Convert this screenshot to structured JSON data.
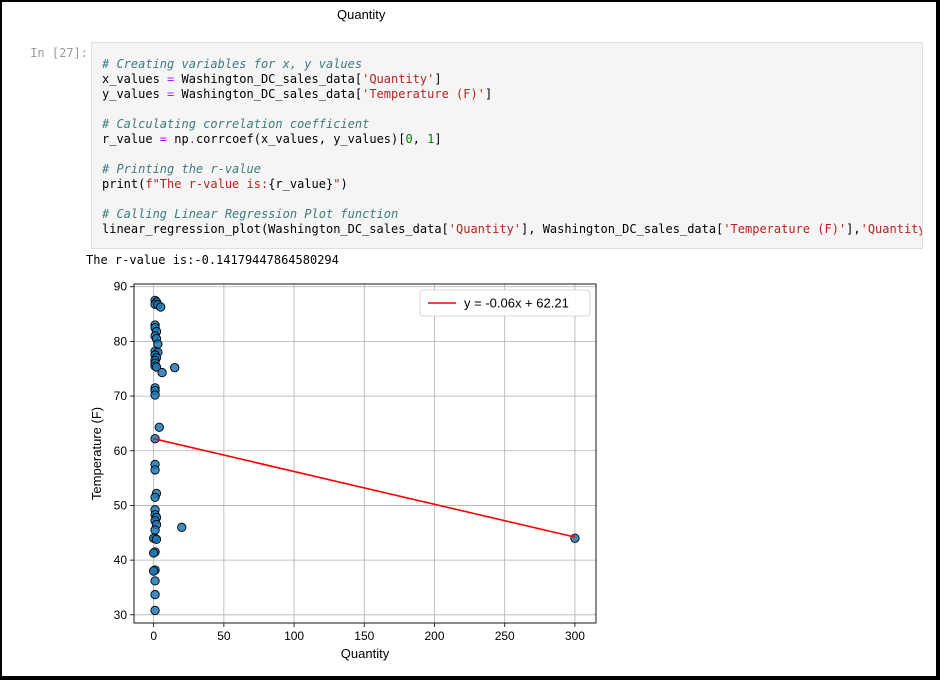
{
  "previous_output": {
    "xlabel": "Quantity"
  },
  "cell": {
    "prompt": "In [27]:",
    "code": [
      [
        [
          "# Creating variables for x, y values",
          "cm"
        ]
      ],
      [
        [
          "x_values ",
          ""
        ],
        [
          "=",
          "op"
        ],
        [
          " Washington_DC_sales_data[",
          ""
        ],
        [
          "'Quantity'",
          "st"
        ],
        [
          "]",
          ""
        ]
      ],
      [
        [
          "y_values ",
          ""
        ],
        [
          "=",
          "op"
        ],
        [
          " Washington_DC_sales_data[",
          ""
        ],
        [
          "'Temperature (F)'",
          "st"
        ],
        [
          "]",
          ""
        ]
      ],
      [],
      [
        [
          "# Calculating correlation coefficient",
          "cm"
        ]
      ],
      [
        [
          "r_value ",
          ""
        ],
        [
          "=",
          "op"
        ],
        [
          " np",
          ""
        ],
        [
          ".",
          "op"
        ],
        [
          "corrcoef(x_values, y_values)[",
          ""
        ],
        [
          "0",
          "nm"
        ],
        [
          ", ",
          ""
        ],
        [
          "1",
          "nm"
        ],
        [
          "]",
          ""
        ]
      ],
      [],
      [
        [
          "# Printing the r-value",
          "cm"
        ]
      ],
      [
        [
          "print(",
          ""
        ],
        [
          "f\"The r-value is:",
          "st"
        ],
        [
          "{r_value}",
          ""
        ],
        [
          "\"",
          "st"
        ],
        [
          ")",
          ""
        ]
      ],
      [],
      [
        [
          "# Calling Linear Regression Plot function",
          "cm"
        ]
      ],
      [
        [
          "linear_regression_plot(Washington_DC_sales_data[",
          ""
        ],
        [
          "'Quantity'",
          "st"
        ],
        [
          "], Washington_DC_sales_data[",
          ""
        ],
        [
          "'Temperature (F)'",
          "st"
        ],
        [
          "],",
          ""
        ],
        [
          "'Quantity'",
          "st"
        ]
      ]
    ]
  },
  "output_text": "The r-value is:-0.14179447864580294",
  "colors": {
    "point_fill": "#1f77b4",
    "point_edge": "#000000",
    "line": "#ff0000",
    "grid": "#b0b0b0"
  },
  "chart_data": {
    "type": "scatter",
    "xlabel": "Quantity",
    "ylabel": "Temperature (F)",
    "xlim": [
      -14,
      315
    ],
    "ylim": [
      28.5,
      90.5
    ],
    "x_ticks": [
      0,
      50,
      100,
      150,
      200,
      250,
      300
    ],
    "y_ticks": [
      30,
      40,
      50,
      60,
      70,
      80,
      90
    ],
    "grid": true,
    "legend": {
      "label": "y = -0.06x + 62.21",
      "placement": "top-right"
    },
    "regression": {
      "slope": -0.06,
      "intercept": 62.21,
      "x_range": [
        0,
        300
      ]
    },
    "points": [
      [
        1,
        87.5
      ],
      [
        2,
        87.2
      ],
      [
        1,
        86.8
      ],
      [
        3,
        86.7
      ],
      [
        5,
        86.3
      ],
      [
        1,
        83.0
      ],
      [
        1,
        82.5
      ],
      [
        2,
        81.8
      ],
      [
        1,
        81.0
      ],
      [
        2,
        80.5
      ],
      [
        3,
        79.5
      ],
      [
        1,
        78.2
      ],
      [
        3,
        78.0
      ],
      [
        1,
        77.5
      ],
      [
        2,
        77.0
      ],
      [
        1,
        76.5
      ],
      [
        1,
        76.0
      ],
      [
        1,
        75.5
      ],
      [
        2,
        75.3
      ],
      [
        15,
        75.2
      ],
      [
        6,
        74.3
      ],
      [
        1,
        71.5
      ],
      [
        1,
        71.0
      ],
      [
        1,
        70.2
      ],
      [
        4,
        64.3
      ],
      [
        1,
        62.2
      ],
      [
        1,
        57.5
      ],
      [
        1,
        56.5
      ],
      [
        2,
        52.2
      ],
      [
        1,
        51.5
      ],
      [
        1,
        49.2
      ],
      [
        1,
        48.3
      ],
      [
        2,
        47.8
      ],
      [
        1,
        47.2
      ],
      [
        2,
        46.5
      ],
      [
        1,
        45.5
      ],
      [
        20,
        46.0
      ],
      [
        1,
        44.0
      ],
      [
        0,
        44.0
      ],
      [
        2,
        43.8
      ],
      [
        1,
        41.5
      ],
      [
        0,
        41.3
      ],
      [
        1,
        38.2
      ],
      [
        0,
        38.0
      ],
      [
        1,
        36.2
      ],
      [
        1,
        33.7
      ],
      [
        1,
        30.8
      ],
      [
        300,
        44.0
      ]
    ]
  }
}
